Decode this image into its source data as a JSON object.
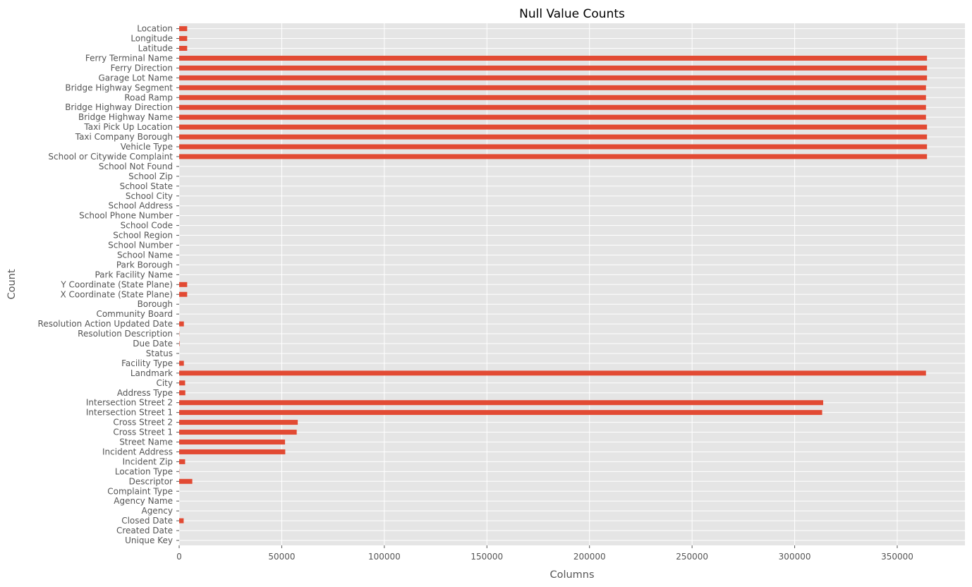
{
  "chart_data": {
    "type": "bar",
    "orientation": "horizontal",
    "title": "Null Value Counts",
    "xlabel": "Columns",
    "ylabel": "Count",
    "xlim": [
      0,
      383000
    ],
    "xticks": [
      0,
      50000,
      100000,
      150000,
      200000,
      250000,
      300000,
      350000
    ],
    "xtick_labels": [
      "0",
      "50000",
      "100000",
      "150000",
      "200000",
      "250000",
      "300000",
      "350000"
    ],
    "grid": true,
    "legend": "none",
    "categories": [
      "Unique Key",
      "Created Date",
      "Closed Date",
      "Agency",
      "Agency Name",
      "Complaint Type",
      "Descriptor",
      "Location Type",
      "Incident Zip",
      "Incident Address",
      "Street Name",
      "Cross Street 1",
      "Cross Street 2",
      "Intersection Street 1",
      "Intersection Street 2",
      "Address Type",
      "City",
      "Landmark",
      "Facility Type",
      "Status",
      "Due Date",
      "Resolution Description",
      "Resolution Action Updated Date",
      "Community Board",
      "Borough",
      "X Coordinate (State Plane)",
      "Y Coordinate (State Plane)",
      "Park Facility Name",
      "Park Borough",
      "School Name",
      "School Number",
      "School Region",
      "School Code",
      "School Phone Number",
      "School Address",
      "School City",
      "School State",
      "School Zip",
      "School Not Found",
      "School or Citywide Complaint",
      "Vehicle Type",
      "Taxi Company Borough",
      "Taxi Pick Up Location",
      "Bridge Highway Name",
      "Bridge Highway Direction",
      "Road Ramp",
      "Bridge Highway Segment",
      "Garage Lot Name",
      "Ferry Direction",
      "Ferry Terminal Name",
      "Latitude",
      "Longitude",
      "Location"
    ],
    "values": [
      0,
      0,
      2200,
      0,
      0,
      0,
      6400,
      100,
      2900,
      51700,
      51600,
      57300,
      57800,
      313400,
      313900,
      3000,
      2900,
      364000,
      2300,
      0,
      200,
      100,
      2300,
      0,
      0,
      3900,
      3900,
      0,
      0,
      0,
      0,
      0,
      0,
      0,
      0,
      0,
      0,
      0,
      0,
      364500,
      364500,
      364500,
      364500,
      364000,
      364000,
      364000,
      364000,
      364500,
      364500,
      364500,
      3900,
      3900,
      3900
    ],
    "colors": {
      "bar": "#e24a33",
      "plot_background": "#e5e5e5",
      "grid": "#ffffff",
      "tick_label": "#555555",
      "title": "#000000"
    }
  }
}
